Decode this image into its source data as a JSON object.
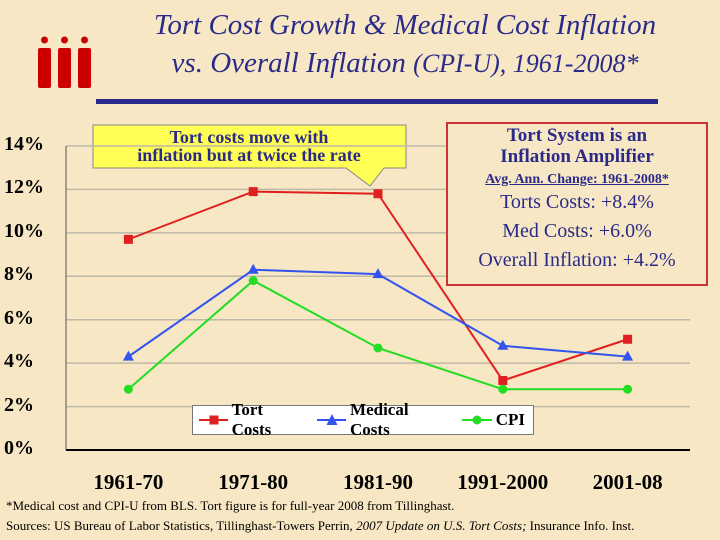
{
  "title": {
    "line1": "Tort Cost Growth & Medical Cost Inflation",
    "line2_main": "vs. Overall Inflation",
    "line2_paren": "(CPI-U), 1961-2008*"
  },
  "callout": {
    "line1": "Tort costs move with",
    "line2": "inflation but at twice the rate"
  },
  "info_box": {
    "heading1": "Tort System is an",
    "heading2": "Inflation Amplifier",
    "subheading": "Avg. Ann. Change: 1961-2008*",
    "stat1": "Torts Costs: +8.4%",
    "stat2": "Med Costs: +6.0%",
    "stat3": "Overall Inflation: +4.2%"
  },
  "chart_data": {
    "type": "line",
    "categories": [
      "1961-70",
      "1971-80",
      "1981-90",
      "1991-2000",
      "2001-08"
    ],
    "series": [
      {
        "name": "Tort Costs",
        "values": [
          9.7,
          11.9,
          11.8,
          3.2,
          5.1
        ],
        "color": "#e02020",
        "marker": "square"
      },
      {
        "name": "Medical Costs",
        "values": [
          4.3,
          8.3,
          8.1,
          4.8,
          4.3
        ],
        "color": "#3355ee",
        "marker": "triangle"
      },
      {
        "name": "CPI",
        "values": [
          2.8,
          7.8,
          4.7,
          2.8,
          2.8
        ],
        "color": "#22dd22",
        "marker": "circle"
      }
    ],
    "yticks": [
      "0%",
      "2%",
      "4%",
      "6%",
      "8%",
      "10%",
      "12%",
      "14%"
    ],
    "ylim": [
      0,
      14
    ],
    "grid": true,
    "legend_position": "bottom-center"
  },
  "footnote": "*Medical cost and CPI-U from BLS.  Tort figure is for full-year 2008 from Tillinghast.",
  "sources": {
    "prefix": "Sources: US Bureau of Labor Statistics, Tillinghast-Towers Perrin, ",
    "italic": "2007 Update on U.S. Tort Costs;",
    "suffix": " Insurance Info. Inst."
  },
  "colors": {
    "title": "#2a2a8a",
    "background": "#f7e7c4",
    "logo": "#cc0000"
  }
}
